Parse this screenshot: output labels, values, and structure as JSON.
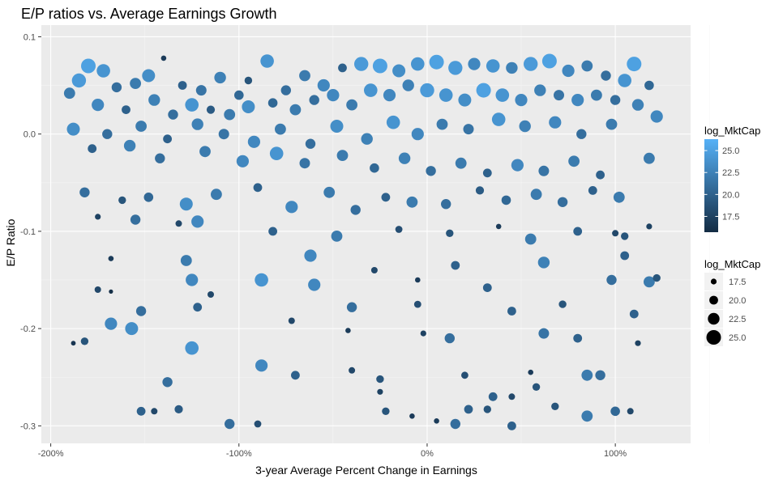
{
  "chart_data": {
    "type": "scatter",
    "title": "E/P ratios vs. Average Earnings Growth",
    "xlabel": "3-year Average Percent Change in Earnings",
    "ylabel": "E/P Ratio",
    "xlim": [
      -2.05,
      1.4
    ],
    "ylim": [
      -0.318,
      0.112
    ],
    "x_ticks": [
      {
        "value": -2.0,
        "label": "-200%"
      },
      {
        "value": -1.0,
        "label": "-100%"
      },
      {
        "value": 0.0,
        "label": "0%"
      },
      {
        "value": 1.0,
        "label": "100%"
      }
    ],
    "y_ticks": [
      {
        "value": 0.1,
        "label": "0.1"
      },
      {
        "value": 0.0,
        "label": "0.0"
      },
      {
        "value": -0.1,
        "label": "-0.1"
      },
      {
        "value": -0.2,
        "label": "-0.2"
      },
      {
        "value": -0.3,
        "label": "-0.3"
      }
    ],
    "grid": true,
    "panel_background": "#ebebeb",
    "color_scale": {
      "title": "log_MktCap",
      "low_color": "#132b43",
      "high_color": "#56b1f7",
      "range": [
        15.7,
        26.3
      ],
      "breaks": [
        {
          "value": 25.0,
          "label": "25.0"
        },
        {
          "value": 22.5,
          "label": "22.5"
        },
        {
          "value": 20.0,
          "label": "20.0"
        },
        {
          "value": 17.5,
          "label": "17.5"
        }
      ]
    },
    "size_scale": {
      "title": "log_MktCap",
      "breaks": [
        {
          "value": 17.5,
          "label": "17.5"
        },
        {
          "value": 20.0,
          "label": "20.0"
        },
        {
          "value": 22.5,
          "label": "22.5"
        },
        {
          "value": 25.0,
          "label": "25.0"
        }
      ]
    },
    "legend_position": "right",
    "points": [
      {
        "x": -1.8,
        "y": 0.07,
        "m": 25.0
      },
      {
        "x": -1.72,
        "y": 0.065,
        "m": 24.0
      },
      {
        "x": -1.85,
        "y": 0.055,
        "m": 24.5
      },
      {
        "x": -1.65,
        "y": 0.048,
        "m": 21.0
      },
      {
        "x": -1.55,
        "y": 0.052,
        "m": 22.0
      },
      {
        "x": -1.48,
        "y": 0.06,
        "m": 23.5
      },
      {
        "x": -1.4,
        "y": 0.078,
        "m": 17.0
      },
      {
        "x": -1.3,
        "y": 0.05,
        "m": 20.0
      },
      {
        "x": -1.2,
        "y": 0.045,
        "m": 21.5
      },
      {
        "x": -1.1,
        "y": 0.058,
        "m": 22.5
      },
      {
        "x": -1.0,
        "y": 0.04,
        "m": 20.5
      },
      {
        "x": -0.95,
        "y": 0.055,
        "m": 19.0
      },
      {
        "x": -0.85,
        "y": 0.075,
        "m": 24.0
      },
      {
        "x": -0.75,
        "y": 0.045,
        "m": 21.0
      },
      {
        "x": -0.65,
        "y": 0.06,
        "m": 22.0
      },
      {
        "x": -0.55,
        "y": 0.05,
        "m": 23.0
      },
      {
        "x": -0.45,
        "y": 0.068,
        "m": 20.0
      },
      {
        "x": -0.35,
        "y": 0.072,
        "m": 24.5
      },
      {
        "x": -0.25,
        "y": 0.07,
        "m": 25.0
      },
      {
        "x": -0.15,
        "y": 0.065,
        "m": 23.5
      },
      {
        "x": -0.05,
        "y": 0.072,
        "m": 24.0
      },
      {
        "x": 0.05,
        "y": 0.074,
        "m": 25.0
      },
      {
        "x": 0.15,
        "y": 0.068,
        "m": 24.5
      },
      {
        "x": 0.25,
        "y": 0.072,
        "m": 23.0
      },
      {
        "x": 0.35,
        "y": 0.07,
        "m": 24.0
      },
      {
        "x": 0.45,
        "y": 0.068,
        "m": 22.5
      },
      {
        "x": 0.55,
        "y": 0.072,
        "m": 24.5
      },
      {
        "x": 0.65,
        "y": 0.075,
        "m": 25.0
      },
      {
        "x": 0.75,
        "y": 0.065,
        "m": 23.0
      },
      {
        "x": 0.85,
        "y": 0.07,
        "m": 22.0
      },
      {
        "x": 0.95,
        "y": 0.06,
        "m": 21.0
      },
      {
        "x": 1.05,
        "y": 0.055,
        "m": 24.0
      },
      {
        "x": 1.1,
        "y": 0.072,
        "m": 25.0
      },
      {
        "x": 1.18,
        "y": 0.05,
        "m": 20.5
      },
      {
        "x": -1.9,
        "y": 0.042,
        "m": 22.0
      },
      {
        "x": -1.75,
        "y": 0.03,
        "m": 23.0
      },
      {
        "x": -1.6,
        "y": 0.025,
        "m": 20.0
      },
      {
        "x": -1.45,
        "y": 0.035,
        "m": 22.5
      },
      {
        "x": -1.35,
        "y": 0.02,
        "m": 21.0
      },
      {
        "x": -1.25,
        "y": 0.03,
        "m": 24.0
      },
      {
        "x": -1.15,
        "y": 0.025,
        "m": 19.5
      },
      {
        "x": -1.05,
        "y": 0.02,
        "m": 22.0
      },
      {
        "x": -0.95,
        "y": 0.028,
        "m": 23.5
      },
      {
        "x": -0.82,
        "y": 0.032,
        "m": 20.5
      },
      {
        "x": -0.7,
        "y": 0.025,
        "m": 22.0
      },
      {
        "x": -0.6,
        "y": 0.035,
        "m": 21.0
      },
      {
        "x": -0.5,
        "y": 0.04,
        "m": 23.0
      },
      {
        "x": -0.4,
        "y": 0.03,
        "m": 22.0
      },
      {
        "x": -0.3,
        "y": 0.045,
        "m": 24.0
      },
      {
        "x": -0.2,
        "y": 0.04,
        "m": 23.0
      },
      {
        "x": -0.1,
        "y": 0.05,
        "m": 22.5
      },
      {
        "x": 0.0,
        "y": 0.045,
        "m": 24.5
      },
      {
        "x": 0.1,
        "y": 0.04,
        "m": 24.0
      },
      {
        "x": 0.2,
        "y": 0.035,
        "m": 23.5
      },
      {
        "x": 0.3,
        "y": 0.045,
        "m": 25.0
      },
      {
        "x": 0.4,
        "y": 0.04,
        "m": 24.0
      },
      {
        "x": 0.5,
        "y": 0.035,
        "m": 23.0
      },
      {
        "x": 0.6,
        "y": 0.045,
        "m": 22.5
      },
      {
        "x": 0.7,
        "y": 0.04,
        "m": 21.5
      },
      {
        "x": 0.8,
        "y": 0.035,
        "m": 23.0
      },
      {
        "x": 0.9,
        "y": 0.04,
        "m": 22.0
      },
      {
        "x": 1.0,
        "y": 0.035,
        "m": 21.0
      },
      {
        "x": 1.12,
        "y": 0.03,
        "m": 22.5
      },
      {
        "x": 1.22,
        "y": 0.018,
        "m": 23.0
      },
      {
        "x": -1.88,
        "y": 0.005,
        "m": 23.5
      },
      {
        "x": -1.7,
        "y": 0.0,
        "m": 21.0
      },
      {
        "x": -1.52,
        "y": 0.008,
        "m": 22.0
      },
      {
        "x": -1.38,
        "y": -0.005,
        "m": 20.0
      },
      {
        "x": -1.22,
        "y": 0.01,
        "m": 22.5
      },
      {
        "x": -1.08,
        "y": 0.0,
        "m": 21.5
      },
      {
        "x": -0.92,
        "y": -0.008,
        "m": 23.0
      },
      {
        "x": -0.78,
        "y": 0.005,
        "m": 22.0
      },
      {
        "x": -0.62,
        "y": -0.01,
        "m": 21.0
      },
      {
        "x": -0.48,
        "y": 0.008,
        "m": 23.5
      },
      {
        "x": -0.32,
        "y": -0.005,
        "m": 22.5
      },
      {
        "x": -0.18,
        "y": 0.012,
        "m": 24.0
      },
      {
        "x": -0.05,
        "y": 0.0,
        "m": 23.0
      },
      {
        "x": 0.08,
        "y": 0.01,
        "m": 22.0
      },
      {
        "x": 0.22,
        "y": 0.005,
        "m": 21.5
      },
      {
        "x": 0.38,
        "y": 0.015,
        "m": 24.0
      },
      {
        "x": 0.52,
        "y": 0.008,
        "m": 22.5
      },
      {
        "x": 0.68,
        "y": 0.012,
        "m": 23.0
      },
      {
        "x": 0.82,
        "y": 0.0,
        "m": 21.0
      },
      {
        "x": 0.98,
        "y": 0.01,
        "m": 22.0
      },
      {
        "x": -1.78,
        "y": -0.015,
        "m": 20.0
      },
      {
        "x": -1.58,
        "y": -0.012,
        "m": 22.5
      },
      {
        "x": -1.42,
        "y": -0.025,
        "m": 21.0
      },
      {
        "x": -1.18,
        "y": -0.018,
        "m": 22.0
      },
      {
        "x": -0.98,
        "y": -0.028,
        "m": 23.0
      },
      {
        "x": -0.8,
        "y": -0.02,
        "m": 24.0
      },
      {
        "x": -0.65,
        "y": -0.03,
        "m": 21.5
      },
      {
        "x": -0.45,
        "y": -0.022,
        "m": 22.0
      },
      {
        "x": -0.28,
        "y": -0.035,
        "m": 20.5
      },
      {
        "x": -0.12,
        "y": -0.025,
        "m": 22.5
      },
      {
        "x": 0.02,
        "y": -0.038,
        "m": 21.0
      },
      {
        "x": 0.18,
        "y": -0.03,
        "m": 22.0
      },
      {
        "x": 0.32,
        "y": -0.04,
        "m": 20.0
      },
      {
        "x": 0.48,
        "y": -0.032,
        "m": 23.0
      },
      {
        "x": 0.62,
        "y": -0.038,
        "m": 21.5
      },
      {
        "x": 0.78,
        "y": -0.028,
        "m": 22.0
      },
      {
        "x": 0.92,
        "y": -0.042,
        "m": 20.0
      },
      {
        "x": 1.18,
        "y": -0.025,
        "m": 22.0
      },
      {
        "x": -1.82,
        "y": -0.06,
        "m": 21.0
      },
      {
        "x": -1.62,
        "y": -0.068,
        "m": 19.0
      },
      {
        "x": -1.48,
        "y": -0.065,
        "m": 20.5
      },
      {
        "x": -1.28,
        "y": -0.072,
        "m": 23.5
      },
      {
        "x": -1.12,
        "y": -0.062,
        "m": 22.0
      },
      {
        "x": -0.9,
        "y": -0.055,
        "m": 20.0
      },
      {
        "x": -0.72,
        "y": -0.075,
        "m": 23.0
      },
      {
        "x": -0.52,
        "y": -0.06,
        "m": 22.0
      },
      {
        "x": -0.38,
        "y": -0.078,
        "m": 21.0
      },
      {
        "x": -0.22,
        "y": -0.065,
        "m": 20.0
      },
      {
        "x": -0.08,
        "y": -0.07,
        "m": 22.0
      },
      {
        "x": 0.1,
        "y": -0.072,
        "m": 21.0
      },
      {
        "x": 0.28,
        "y": -0.058,
        "m": 19.5
      },
      {
        "x": 0.42,
        "y": -0.068,
        "m": 20.5
      },
      {
        "x": 0.58,
        "y": -0.062,
        "m": 22.0
      },
      {
        "x": 0.72,
        "y": -0.07,
        "m": 21.0
      },
      {
        "x": 0.88,
        "y": -0.058,
        "m": 20.0
      },
      {
        "x": 1.02,
        "y": -0.065,
        "m": 22.0
      },
      {
        "x": -1.75,
        "y": -0.085,
        "m": 17.5
      },
      {
        "x": -1.55,
        "y": -0.088,
        "m": 21.0
      },
      {
        "x": -1.32,
        "y": -0.092,
        "m": 18.0
      },
      {
        "x": -1.22,
        "y": -0.09,
        "m": 23.0
      },
      {
        "x": -0.82,
        "y": -0.1,
        "m": 20.0
      },
      {
        "x": -0.48,
        "y": -0.105,
        "m": 22.0
      },
      {
        "x": -0.15,
        "y": -0.098,
        "m": 18.5
      },
      {
        "x": 0.12,
        "y": -0.102,
        "m": 19.0
      },
      {
        "x": 0.38,
        "y": -0.095,
        "m": 17.0
      },
      {
        "x": 0.55,
        "y": -0.108,
        "m": 22.0
      },
      {
        "x": 0.8,
        "y": -0.1,
        "m": 20.0
      },
      {
        "x": 1.0,
        "y": -0.102,
        "m": 18.0
      },
      {
        "x": 1.05,
        "y": -0.105,
        "m": 19.0
      },
      {
        "x": 1.18,
        "y": -0.095,
        "m": 17.5
      },
      {
        "x": -1.68,
        "y": -0.128,
        "m": 17.0
      },
      {
        "x": -1.28,
        "y": -0.13,
        "m": 22.0
      },
      {
        "x": -0.62,
        "y": -0.125,
        "m": 23.0
      },
      {
        "x": -0.28,
        "y": -0.14,
        "m": 18.0
      },
      {
        "x": 0.15,
        "y": -0.135,
        "m": 20.0
      },
      {
        "x": 0.62,
        "y": -0.132,
        "m": 22.5
      },
      {
        "x": 1.05,
        "y": -0.125,
        "m": 20.0
      },
      {
        "x": -1.75,
        "y": -0.16,
        "m": 18.0
      },
      {
        "x": -1.68,
        "y": -0.162,
        "m": 16.0
      },
      {
        "x": -1.25,
        "y": -0.15,
        "m": 23.0
      },
      {
        "x": -1.15,
        "y": -0.165,
        "m": 18.0
      },
      {
        "x": -0.88,
        "y": -0.15,
        "m": 24.0
      },
      {
        "x": -0.6,
        "y": -0.155,
        "m": 23.0
      },
      {
        "x": -0.05,
        "y": -0.15,
        "m": 17.0
      },
      {
        "x": 0.32,
        "y": -0.158,
        "m": 20.0
      },
      {
        "x": 0.98,
        "y": -0.15,
        "m": 21.0
      },
      {
        "x": 1.18,
        "y": -0.152,
        "m": 22.0
      },
      {
        "x": 1.22,
        "y": -0.148,
        "m": 19.0
      },
      {
        "x": -1.52,
        "y": -0.182,
        "m": 21.0
      },
      {
        "x": -1.22,
        "y": -0.178,
        "m": 20.0
      },
      {
        "x": -0.72,
        "y": -0.192,
        "m": 18.0
      },
      {
        "x": -0.4,
        "y": -0.178,
        "m": 21.0
      },
      {
        "x": -0.05,
        "y": -0.175,
        "m": 18.5
      },
      {
        "x": 0.45,
        "y": -0.182,
        "m": 20.0
      },
      {
        "x": 0.72,
        "y": -0.175,
        "m": 19.0
      },
      {
        "x": 1.1,
        "y": -0.185,
        "m": 20.0
      },
      {
        "x": -1.68,
        "y": -0.195,
        "m": 23.0
      },
      {
        "x": -1.57,
        "y": -0.2,
        "m": 23.5
      },
      {
        "x": -1.88,
        "y": -0.215,
        "m": 16.5
      },
      {
        "x": -1.82,
        "y": -0.213,
        "m": 19.0
      },
      {
        "x": -1.25,
        "y": -0.22,
        "m": 24.0
      },
      {
        "x": -0.88,
        "y": -0.238,
        "m": 23.0
      },
      {
        "x": -0.42,
        "y": -0.202,
        "m": 17.0
      },
      {
        "x": -0.02,
        "y": -0.205,
        "m": 17.5
      },
      {
        "x": 0.12,
        "y": -0.21,
        "m": 21.0
      },
      {
        "x": 0.62,
        "y": -0.205,
        "m": 21.5
      },
      {
        "x": 0.8,
        "y": -0.21,
        "m": 20.0
      },
      {
        "x": 1.12,
        "y": -0.215,
        "m": 17.5
      },
      {
        "x": -0.7,
        "y": -0.248,
        "m": 20.0
      },
      {
        "x": -0.4,
        "y": -0.243,
        "m": 18.0
      },
      {
        "x": -0.25,
        "y": -0.252,
        "m": 19.0
      },
      {
        "x": 0.2,
        "y": -0.248,
        "m": 18.5
      },
      {
        "x": 0.55,
        "y": -0.245,
        "m": 17.0
      },
      {
        "x": 0.85,
        "y": -0.248,
        "m": 22.0
      },
      {
        "x": 0.92,
        "y": -0.248,
        "m": 21.0
      },
      {
        "x": -1.38,
        "y": -0.255,
        "m": 21.0
      },
      {
        "x": -0.25,
        "y": -0.265,
        "m": 17.5
      },
      {
        "x": 0.35,
        "y": -0.27,
        "m": 20.0
      },
      {
        "x": 0.45,
        "y": -0.27,
        "m": 18.0
      },
      {
        "x": 0.58,
        "y": -0.26,
        "m": 19.0
      },
      {
        "x": -1.52,
        "y": -0.285,
        "m": 20.0
      },
      {
        "x": -1.45,
        "y": -0.285,
        "m": 18.0
      },
      {
        "x": -1.32,
        "y": -0.283,
        "m": 19.5
      },
      {
        "x": -0.22,
        "y": -0.285,
        "m": 19.0
      },
      {
        "x": -0.08,
        "y": -0.29,
        "m": 17.0
      },
      {
        "x": 0.22,
        "y": -0.283,
        "m": 20.0
      },
      {
        "x": 0.32,
        "y": -0.283,
        "m": 19.0
      },
      {
        "x": 0.68,
        "y": -0.28,
        "m": 19.0
      },
      {
        "x": 0.85,
        "y": -0.29,
        "m": 22.0
      },
      {
        "x": 1.0,
        "y": -0.285,
        "m": 20.5
      },
      {
        "x": 1.08,
        "y": -0.285,
        "m": 18.0
      },
      {
        "x": -1.05,
        "y": -0.298,
        "m": 21.0
      },
      {
        "x": -0.9,
        "y": -0.298,
        "m": 18.5
      },
      {
        "x": 0.05,
        "y": -0.295,
        "m": 17.0
      },
      {
        "x": 0.45,
        "y": -0.3,
        "m": 20.0
      },
      {
        "x": 0.15,
        "y": -0.298,
        "m": 21.0
      }
    ]
  }
}
